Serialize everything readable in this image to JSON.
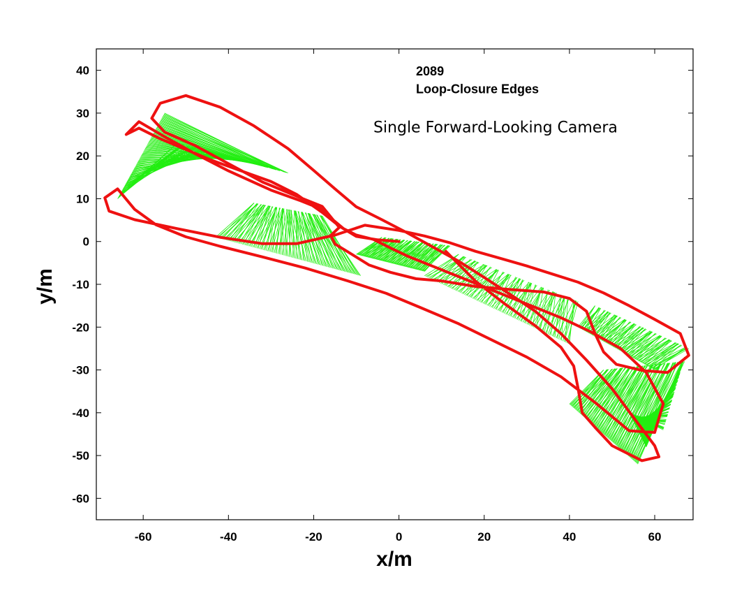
{
  "chart_data": {
    "type": "line",
    "title": "",
    "xlabel": "x/m",
    "ylabel": "y/m",
    "xlim": [
      -71,
      69
    ],
    "ylim": [
      -65,
      45
    ],
    "x_ticks": [
      -60,
      -40,
      -20,
      0,
      20,
      40,
      60
    ],
    "y_ticks": [
      40,
      30,
      20,
      10,
      0,
      -10,
      -20,
      -30,
      -40,
      -50,
      -60
    ],
    "grid": false,
    "legend": "none",
    "annotations": [
      {
        "text": "2089",
        "x": 4,
        "y": 38.8
      },
      {
        "text": "Loop-Closure Edges",
        "x": 4,
        "y": 34.6
      },
      {
        "text": "Single Forward-Looking Camera",
        "x": -6,
        "y": 25.5
      }
    ],
    "colors": {
      "trajectory": "#ee1111",
      "edges": "#22ee11",
      "axes": "#000000"
    },
    "series": [
      {
        "role": "trajectory",
        "x": [
          0,
          -5,
          -10,
          -14,
          -18,
          -24,
          -30,
          -37,
          -44,
          -50,
          -56,
          -61,
          -64,
          -61,
          -55,
          -48,
          -40,
          -30,
          -23,
          -18,
          -16,
          -13,
          -10,
          -6,
          -2,
          2,
          8,
          15,
          22,
          30,
          38,
          45,
          52,
          58,
          62,
          60,
          54,
          46,
          38,
          30,
          22,
          14,
          5,
          -3,
          -12,
          -22,
          -32,
          -42,
          -50,
          -57,
          -62,
          -66,
          -69,
          -68,
          -62,
          -52,
          -42,
          -32,
          -24,
          -15,
          -8,
          0,
          6,
          12,
          18,
          24,
          30,
          36,
          42,
          48,
          54,
          60,
          66,
          68,
          63,
          57,
          51,
          48,
          46,
          44,
          40,
          34,
          26,
          18,
          10,
          4,
          -2,
          -7,
          -12,
          -15,
          -16,
          -14,
          -18,
          -24,
          -32,
          -40,
          -48,
          -55,
          -58,
          -56,
          -50,
          -42,
          -34,
          -26,
          -20,
          -15,
          -10,
          -4,
          2,
          8,
          14,
          20,
          26,
          32,
          38,
          44,
          50,
          56,
          60,
          61,
          57,
          50,
          46,
          43,
          42,
          41,
          38,
          32,
          25,
          18,
          11
        ],
        "y": [
          0,
          0.4,
          1.2,
          3.6,
          6.8,
          11,
          14,
          16.5,
          19,
          21.5,
          24,
          26.5,
          25,
          28,
          24.5,
          20.6,
          16.5,
          12,
          9.5,
          7.5,
          5.5,
          3,
          1.5,
          0.5,
          -1.5,
          -3.4,
          -5.8,
          -8.6,
          -11.4,
          -14.6,
          -17.8,
          -21.1,
          -25,
          -30.6,
          -37.9,
          -44.6,
          -44.2,
          -37.6,
          -31.6,
          -27,
          -23.1,
          -19.2,
          -15.4,
          -12.1,
          -9.2,
          -6.2,
          -3.6,
          -1.1,
          1.1,
          3.9,
          7.5,
          12.3,
          10.2,
          7.1,
          5.1,
          3,
          1,
          -0.5,
          -0.5,
          1.5,
          3.8,
          2.6,
          1.3,
          -0.3,
          -2.3,
          -4,
          -5.7,
          -7.6,
          -9.5,
          -12,
          -15,
          -18.2,
          -21.5,
          -26.6,
          -30.6,
          -30.1,
          -28.7,
          -25.8,
          -21.5,
          -16.3,
          -13.3,
          -11.8,
          -11.2,
          -10.5,
          -9.2,
          -8.7,
          -7.2,
          -5.5,
          -2.4,
          -0.6,
          1.4,
          3.3,
          8.2,
          10.6,
          13.9,
          18.2,
          22.5,
          25.6,
          28.8,
          32.3,
          34.1,
          31.4,
          27,
          21.7,
          16.6,
          12.3,
          8.1,
          5.1,
          2,
          -1.3,
          -4.6,
          -8.4,
          -12.3,
          -16.3,
          -21.5,
          -27.7,
          -34.4,
          -42.4,
          -47.7,
          -50.3,
          -51.2,
          -47.7,
          -43.4,
          -40,
          -34.2,
          -29.1,
          -24.7,
          -19.7,
          -14.7,
          -9.3,
          -2.3
        ]
      },
      {
        "role": "loop-closure-edges",
        "count": 2089,
        "clusters": [
          {
            "a_from": [
              -66,
              10
            ],
            "a_to": [
              -55,
              30
            ],
            "b_from": [
              -52,
              23
            ],
            "b_to": [
              -26,
              16
            ]
          },
          {
            "a_from": [
              -43,
              1
            ],
            "a_to": [
              -9,
              -8
            ],
            "b_from": [
              -34,
              9
            ],
            "b_to": [
              -18,
              6
            ]
          },
          {
            "a_from": [
              -10,
              -3
            ],
            "a_to": [
              6,
              -7
            ],
            "b_from": [
              -4,
              1
            ],
            "b_to": [
              12,
              -1
            ]
          },
          {
            "a_from": [
              6,
              -8
            ],
            "a_to": [
              40,
              -24
            ],
            "b_from": [
              14,
              -3
            ],
            "b_to": [
              42,
              -14
            ]
          },
          {
            "a_from": [
              42,
              -20
            ],
            "a_to": [
              60,
              -30
            ],
            "b_from": [
              46,
              -15
            ],
            "b_to": [
              68,
              -25
            ]
          },
          {
            "a_from": [
              40,
              -38
            ],
            "a_to": [
              56,
              -52
            ],
            "b_from": [
              48,
              -30
            ],
            "b_to": [
              67,
              -28
            ]
          },
          {
            "a_from": [
              58,
              -48
            ],
            "a_to": [
              54,
              -40
            ],
            "b_from": [
              67,
              -27
            ],
            "b_to": [
              62,
              -44
            ]
          }
        ]
      }
    ]
  }
}
